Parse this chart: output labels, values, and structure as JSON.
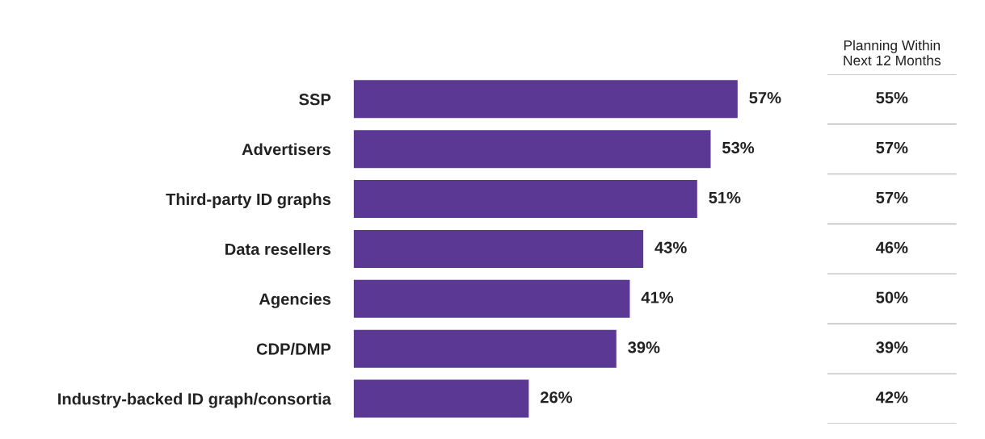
{
  "chart_data": [
    {
      "type": "bar",
      "orientation": "horizontal",
      "categories": [
        "SSP",
        "Advertisers",
        "Third-party ID graphs",
        "Data resellers",
        "Agencies",
        "CDP/DMP",
        "Industry-backed ID graph/consortia"
      ],
      "values": [
        57,
        53,
        51,
        43,
        41,
        39,
        26
      ],
      "value_labels": [
        "57%",
        "53%",
        "51%",
        "43%",
        "41%",
        "39%",
        "26%"
      ],
      "color": "#5b3893"
    },
    {
      "type": "other",
      "title": "Planning Within\nNext 12 Months",
      "categories": [
        null,
        null,
        null,
        null,
        null,
        null,
        null
      ],
      "values": [
        55,
        57,
        57,
        46,
        50,
        39,
        42
      ],
      "value_labels": [
        "55%",
        "57%",
        "57%",
        "46%",
        "50%",
        "39%",
        "42%"
      ]
    }
  ]
}
